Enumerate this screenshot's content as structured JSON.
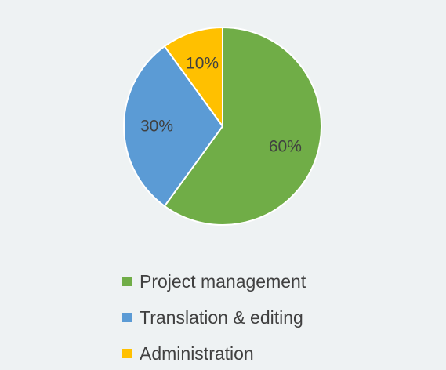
{
  "chart_data": {
    "type": "pie",
    "title": "",
    "legend_position": "bottom",
    "slices": [
      {
        "name": "Project management",
        "value": 60,
        "label": "60%",
        "color": "#70AD47"
      },
      {
        "name": "Translation & editing",
        "value": 30,
        "label": "30%",
        "color": "#5B9BD5"
      },
      {
        "name": "Administration",
        "value": 10,
        "label": "10%",
        "color": "#FFC000"
      }
    ]
  }
}
